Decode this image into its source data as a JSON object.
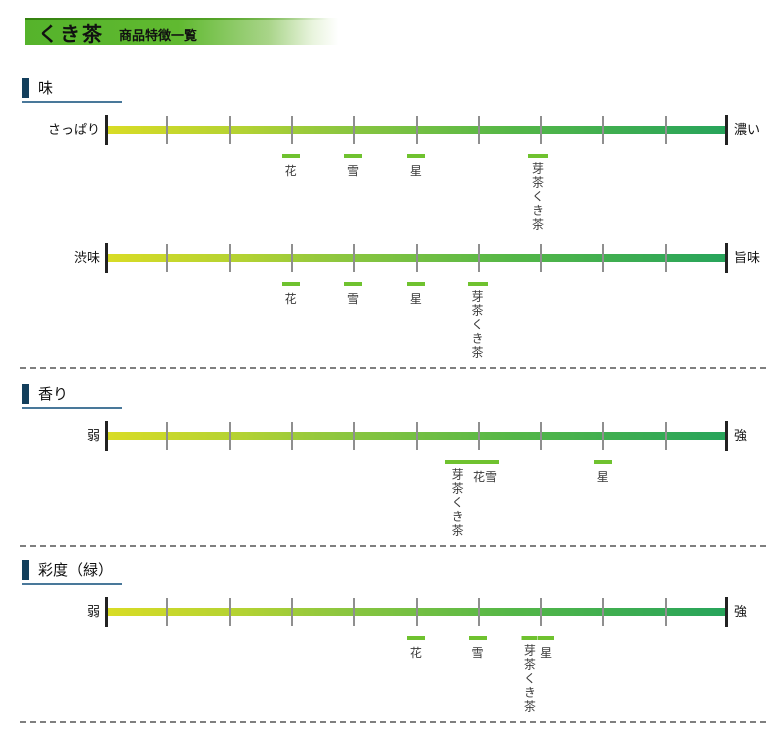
{
  "header": {
    "title": "くき茶",
    "subtitle": "商品特徴一覧"
  },
  "colors": {
    "header_green": "#55b32b",
    "header_top_line": "#34810f",
    "section_accent_navy": "#133f5c",
    "section_underline_blue": "#49789a",
    "scale_gradient_left": "#d9dc25",
    "scale_gradient_right": "#27a45b",
    "marker_green": "#6fc22f",
    "tick_gray": "#8f8f8f",
    "end_tick_black": "#222222"
  },
  "sections": [
    {
      "title": "味",
      "scales": [
        {
          "left_label": "さっぱり",
          "right_label": "濃い",
          "markers": [
            {
              "label": "花",
              "pos": 29.8,
              "dash_w": 18,
              "vertical": false
            },
            {
              "label": "雪",
              "pos": 39.8,
              "dash_w": 18,
              "vertical": false
            },
            {
              "label": "星",
              "pos": 49.9,
              "dash_w": 18,
              "vertical": false
            },
            {
              "label": "芽茶くき茶",
              "pos": 69.5,
              "dash_w": 20,
              "vertical": true
            }
          ]
        },
        {
          "left_label": "渋味",
          "right_label": "旨味",
          "markers": [
            {
              "label": "花",
              "pos": 29.8,
              "dash_w": 18,
              "vertical": false
            },
            {
              "label": "雪",
              "pos": 39.8,
              "dash_w": 18,
              "vertical": false
            },
            {
              "label": "星",
              "pos": 49.9,
              "dash_w": 18,
              "vertical": false
            },
            {
              "label": "芽茶くき茶",
              "pos": 59.8,
              "dash_w": 20,
              "vertical": true
            }
          ]
        }
      ]
    },
    {
      "title": "香り",
      "scales": [
        {
          "left_label": "弱",
          "right_label": "強",
          "markers": [
            {
              "label": "芽茶くき茶",
              "pos": 56.6,
              "dash_w": 26,
              "vertical": true
            },
            {
              "label": "花雪",
              "pos": 61.0,
              "dash_w": 28,
              "vertical": false
            },
            {
              "label": "星",
              "pos": 79.9,
              "dash_w": 18,
              "vertical": false
            }
          ]
        }
      ]
    },
    {
      "title": "彩度（緑）",
      "scales": [
        {
          "left_label": "弱",
          "right_label": "強",
          "markers": [
            {
              "label": "花",
              "pos": 49.9,
              "dash_w": 18,
              "vertical": false
            },
            {
              "label": "雪",
              "pos": 59.8,
              "dash_w": 18,
              "vertical": false
            },
            {
              "label": "芽茶くき茶",
              "pos": 68.2,
              "dash_w": 16,
              "vertical": true
            },
            {
              "label": "星",
              "pos": 70.8,
              "dash_w": 16,
              "vertical": false
            }
          ]
        }
      ]
    }
  ],
  "chart_data": [
    {
      "type": "scatter",
      "title": "味",
      "axis": {
        "left_end": "さっぱり",
        "right_end": "濃い",
        "range": [
          0,
          10
        ],
        "tick_step": 1,
        "gradient": [
          "#d9dc25",
          "#27a45b"
        ]
      },
      "points": [
        {
          "name": "花",
          "value": 3
        },
        {
          "name": "雪",
          "value": 4
        },
        {
          "name": "星",
          "value": 5
        },
        {
          "name": "芽茶くき茶",
          "value": 7
        }
      ]
    },
    {
      "type": "scatter",
      "title": "味（渋味〜旨味）",
      "axis": {
        "left_end": "渋味",
        "right_end": "旨味",
        "range": [
          0,
          10
        ],
        "tick_step": 1,
        "gradient": [
          "#d9dc25",
          "#27a45b"
        ]
      },
      "points": [
        {
          "name": "花",
          "value": 3
        },
        {
          "name": "雪",
          "value": 4
        },
        {
          "name": "星",
          "value": 5
        },
        {
          "name": "芽茶くき茶",
          "value": 6
        }
      ]
    },
    {
      "type": "scatter",
      "title": "香り",
      "axis": {
        "left_end": "弱",
        "right_end": "強",
        "range": [
          0,
          10
        ],
        "tick_step": 1,
        "gradient": [
          "#d9dc25",
          "#27a45b"
        ]
      },
      "points": [
        {
          "name": "芽茶くき茶",
          "value": 5.7
        },
        {
          "name": "花",
          "value": 6
        },
        {
          "name": "雪",
          "value": 6
        },
        {
          "name": "星",
          "value": 8
        }
      ]
    },
    {
      "type": "scatter",
      "title": "彩度（緑）",
      "axis": {
        "left_end": "弱",
        "right_end": "強",
        "range": [
          0,
          10
        ],
        "tick_step": 1,
        "gradient": [
          "#d9dc25",
          "#27a45b"
        ]
      },
      "points": [
        {
          "name": "花",
          "value": 5
        },
        {
          "name": "雪",
          "value": 6
        },
        {
          "name": "芽茶くき茶",
          "value": 6.8
        },
        {
          "name": "星",
          "value": 7
        }
      ]
    }
  ]
}
